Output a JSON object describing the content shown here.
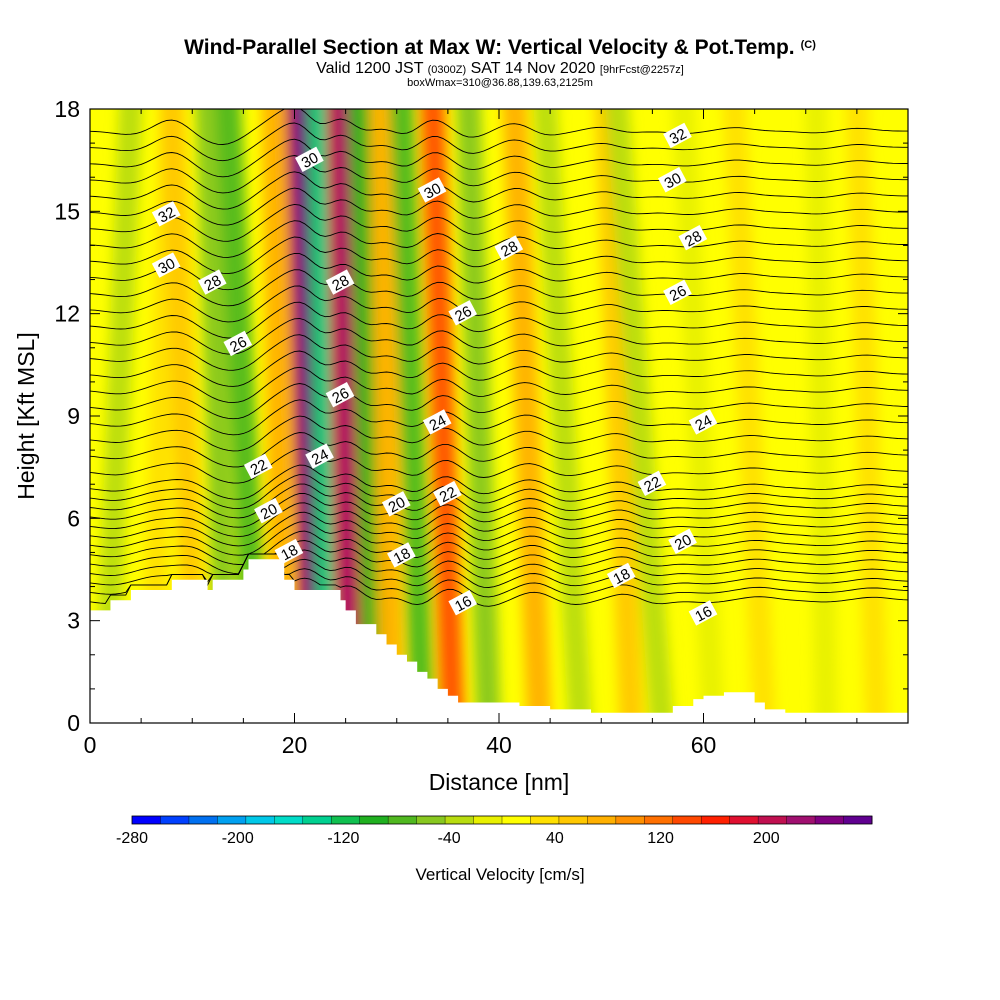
{
  "header": {
    "title": "Wind-Parallel Section at Max W: Vertical Velocity & Pot.Temp.",
    "title_tag": "(C)",
    "valid_prefix": "Valid 1200 JST",
    "valid_utc": "(0300Z)",
    "valid_date": "SAT 14 Nov 2020",
    "forecast": "[9hrFcst@2257z]",
    "boxline": "boxWmax=310@36.88,139.63,2125m"
  },
  "chart_data": {
    "type": "heatmap",
    "title": "Wind-Parallel Section at Max W: Vertical Velocity & Pot.Temp.",
    "xlabel": "Distance [nm]",
    "ylabel": "Height [Kft MSL]",
    "xlim": [
      0,
      80
    ],
    "ylim": [
      0,
      18
    ],
    "xticks": [
      0,
      20,
      40,
      60
    ],
    "yticks": [
      0,
      3,
      6,
      9,
      12,
      15,
      18
    ],
    "colorbar": {
      "label": "Vertical Velocity [cm/s]",
      "ticks": [
        -280,
        -200,
        -120,
        -40,
        40,
        120,
        200
      ],
      "range": [
        -280,
        280
      ],
      "colors": [
        "#0000ff",
        "#0040ff",
        "#0070f0",
        "#00a0f0",
        "#00c8e8",
        "#00dcc8",
        "#00d090",
        "#10c050",
        "#20b020",
        "#50b820",
        "#88c820",
        "#b8dc10",
        "#e8f000",
        "#ffff00",
        "#ffe000",
        "#ffc800",
        "#ffb000",
        "#ff9000",
        "#ff7000",
        "#ff4800",
        "#ff2000",
        "#e01030",
        "#c01050",
        "#a01070",
        "#800080",
        "#600090"
      ]
    },
    "terrain_kft": [
      [
        0,
        3.3
      ],
      [
        2,
        3.6
      ],
      [
        4,
        3.9
      ],
      [
        6,
        3.9
      ],
      [
        7.5,
        3.9
      ],
      [
        8,
        4.2
      ],
      [
        11,
        4.2
      ],
      [
        11.5,
        3.9
      ],
      [
        12,
        4.2
      ],
      [
        15,
        4.5
      ],
      [
        15.5,
        4.8
      ],
      [
        18,
        4.8
      ],
      [
        19,
        4.2
      ],
      [
        20,
        3.9
      ],
      [
        22,
        3.9
      ],
      [
        24,
        3.9
      ],
      [
        24.5,
        3.6
      ],
      [
        25,
        3.3
      ],
      [
        26,
        2.9
      ],
      [
        27,
        2.9
      ],
      [
        28,
        2.6
      ],
      [
        29,
        2.3
      ],
      [
        30,
        2.0
      ],
      [
        31,
        1.8
      ],
      [
        32,
        1.5
      ],
      [
        33,
        1.3
      ],
      [
        34,
        1.0
      ],
      [
        35,
        0.8
      ],
      [
        36,
        0.6
      ],
      [
        38,
        0.6
      ],
      [
        40,
        0.6
      ],
      [
        42,
        0.5
      ],
      [
        45,
        0.4
      ],
      [
        49,
        0.3
      ],
      [
        52,
        0.3
      ],
      [
        55,
        0.3
      ],
      [
        57,
        0.5
      ],
      [
        59,
        0.7
      ],
      [
        60,
        0.8
      ],
      [
        62,
        0.9
      ],
      [
        64,
        0.9
      ],
      [
        65,
        0.6
      ],
      [
        66,
        0.4
      ],
      [
        68,
        0.3
      ],
      [
        80,
        0.3
      ]
    ],
    "w_bands": [
      {
        "x_bottom": 1.5,
        "x_top": 4,
        "w": -30
      },
      {
        "x_bottom": 6,
        "x_top": 8,
        "w": 40
      },
      {
        "x_bottom": 10.5,
        "x_top": 8,
        "w": 60
      },
      {
        "x_bottom": 13.5,
        "x_top": 11.5,
        "w": -60
      },
      {
        "x_bottom": 16.5,
        "x_top": 13.5,
        "w": -80
      },
      {
        "x_bottom": 19,
        "x_top": 18,
        "w": 80
      },
      {
        "x_bottom": 22,
        "x_top": 20.5,
        "w": 210
      },
      {
        "x_bottom": 23.5,
        "x_top": 22.5,
        "w": -110
      },
      {
        "x_bottom": 25.5,
        "x_top": 24.5,
        "w": 180
      },
      {
        "x_bottom": 28,
        "x_top": 26.5,
        "w": -90
      },
      {
        "x_bottom": 29.5,
        "x_top": 28.5,
        "w": 80
      },
      {
        "x_bottom": 32.5,
        "x_top": 30.5,
        "w": -70
      },
      {
        "x_bottom": 35.5,
        "x_top": 33.5,
        "w": 110
      },
      {
        "x_bottom": 39,
        "x_top": 37,
        "w": -60
      },
      {
        "x_bottom": 44,
        "x_top": 41.5,
        "w": 70
      },
      {
        "x_bottom": 48,
        "x_top": 44.5,
        "w": -40
      },
      {
        "x_bottom": 53,
        "x_top": 50.5,
        "w": 60
      },
      {
        "x_bottom": 56,
        "x_top": 51.5,
        "w": -40
      },
      {
        "x_bottom": 61,
        "x_top": 58,
        "w": -20
      },
      {
        "x_bottom": 66,
        "x_top": 63,
        "w": 30
      },
      {
        "x_bottom": 72,
        "x_top": 71,
        "w": -15
      },
      {
        "x_bottom": 77,
        "x_top": 75,
        "w": 25
      }
    ],
    "theta_contours": [
      {
        "value": 16,
        "labels": [
          {
            "x": 36.5,
            "y": 3.5
          },
          {
            "x": 60,
            "y": 3.2
          }
        ]
      },
      {
        "value": 18,
        "labels": [
          {
            "x": 19.5,
            "y": 5.0
          },
          {
            "x": 30.5,
            "y": 4.9
          },
          {
            "x": 52,
            "y": 4.3
          }
        ]
      },
      {
        "value": 20,
        "labels": [
          {
            "x": 17.5,
            "y": 6.2
          },
          {
            "x": 30,
            "y": 6.4
          },
          {
            "x": 58,
            "y": 5.3
          }
        ]
      },
      {
        "value": 22,
        "labels": [
          {
            "x": 16.5,
            "y": 7.5
          },
          {
            "x": 35,
            "y": 6.7
          },
          {
            "x": 55,
            "y": 7.0
          }
        ]
      },
      {
        "value": 24,
        "labels": [
          {
            "x": 22.5,
            "y": 7.8
          },
          {
            "x": 34,
            "y": 8.8
          },
          {
            "x": 60,
            "y": 8.8
          }
        ]
      },
      {
        "value": 26,
        "labels": [
          {
            "x": 14.5,
            "y": 11.1
          },
          {
            "x": 24.5,
            "y": 9.6
          },
          {
            "x": 36.5,
            "y": 12.0
          },
          {
            "x": 57.5,
            "y": 12.6
          }
        ]
      },
      {
        "value": 28,
        "labels": [
          {
            "x": 12,
            "y": 12.9
          },
          {
            "x": 24.5,
            "y": 12.9
          },
          {
            "x": 41,
            "y": 13.9
          },
          {
            "x": 59,
            "y": 14.2
          }
        ]
      },
      {
        "value": 30,
        "labels": [
          {
            "x": 7.5,
            "y": 13.4
          },
          {
            "x": 21.5,
            "y": 16.5
          },
          {
            "x": 33.5,
            "y": 15.6
          },
          {
            "x": 57,
            "y": 15.9
          }
        ]
      },
      {
        "value": 32,
        "labels": [
          {
            "x": 7.5,
            "y": 14.9
          },
          {
            "x": 57.5,
            "y": 17.2
          }
        ]
      }
    ]
  }
}
